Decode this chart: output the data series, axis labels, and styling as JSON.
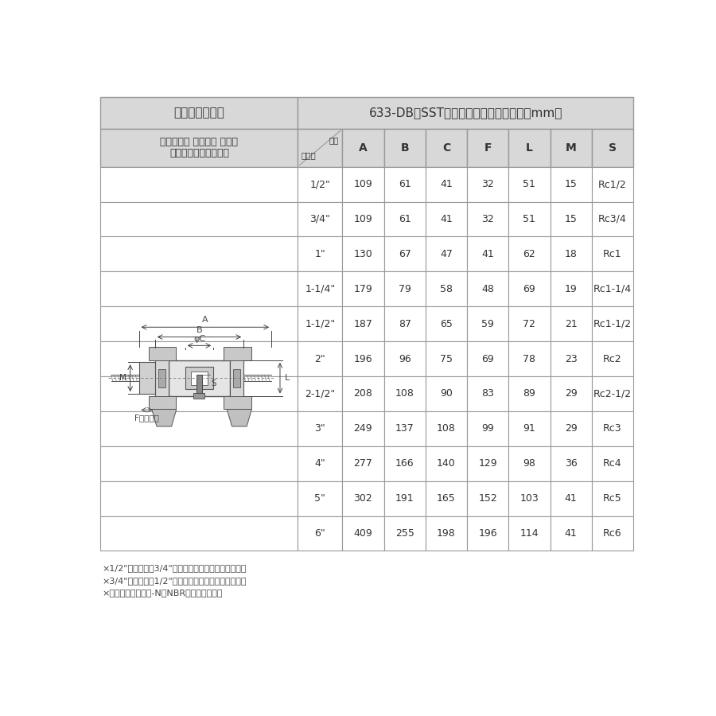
{
  "title_left": "カムアーム継手",
  "title_right": "633-DB　SST　サイズ別寸法表（単位：mm）",
  "subtitle_line1": "カムロック カプラー メネジ",
  "subtitle_line2": "ステンレススチール製",
  "header_top": "位置",
  "header_bottom": "サイズ",
  "col_headers": [
    "A",
    "B",
    "C",
    "F",
    "L",
    "M",
    "S"
  ],
  "sizes": [
    "1/2\"",
    "3/4\"",
    "1\"",
    "1-1/4\"",
    "1-1/2\"",
    "2\"",
    "2-1/2\"",
    "3\"",
    "4\"",
    "5\"",
    "6\""
  ],
  "data": [
    [
      "109",
      "61",
      "41",
      "32",
      "51",
      "15",
      "Rc1/2"
    ],
    [
      "109",
      "61",
      "41",
      "32",
      "51",
      "15",
      "Rc3/4"
    ],
    [
      "130",
      "67",
      "47",
      "41",
      "62",
      "18",
      "Rc1"
    ],
    [
      "179",
      "79",
      "58",
      "48",
      "69",
      "19",
      "Rc1-1/4"
    ],
    [
      "187",
      "87",
      "65",
      "59",
      "72",
      "21",
      "Rc1-1/2"
    ],
    [
      "196",
      "96",
      "75",
      "69",
      "78",
      "23",
      "Rc2"
    ],
    [
      "208",
      "108",
      "90",
      "83",
      "89",
      "29",
      "Rc2-1/2"
    ],
    [
      "249",
      "137",
      "108",
      "99",
      "91",
      "29",
      "Rc3"
    ],
    [
      "277",
      "166",
      "140",
      "129",
      "98",
      "36",
      "Rc4"
    ],
    [
      "302",
      "191",
      "165",
      "152",
      "103",
      "41",
      "Rc5"
    ],
    [
      "409",
      "255",
      "198",
      "196",
      "114",
      "41",
      "Rc6"
    ]
  ],
  "footnotes": [
    "×1/2\"カプラーは3/4\"アダプターにも接続できます。",
    "×3/4\"カプラーは1/2\"アダプターにも接続できます。",
    "×ガスケットはブナ-N（NBR）を標準装備。"
  ],
  "bg_header": "#d8d8d8",
  "bg_white": "#ffffff",
  "border_color": "#999999",
  "text_color": "#333333",
  "dim_color": "#444444"
}
